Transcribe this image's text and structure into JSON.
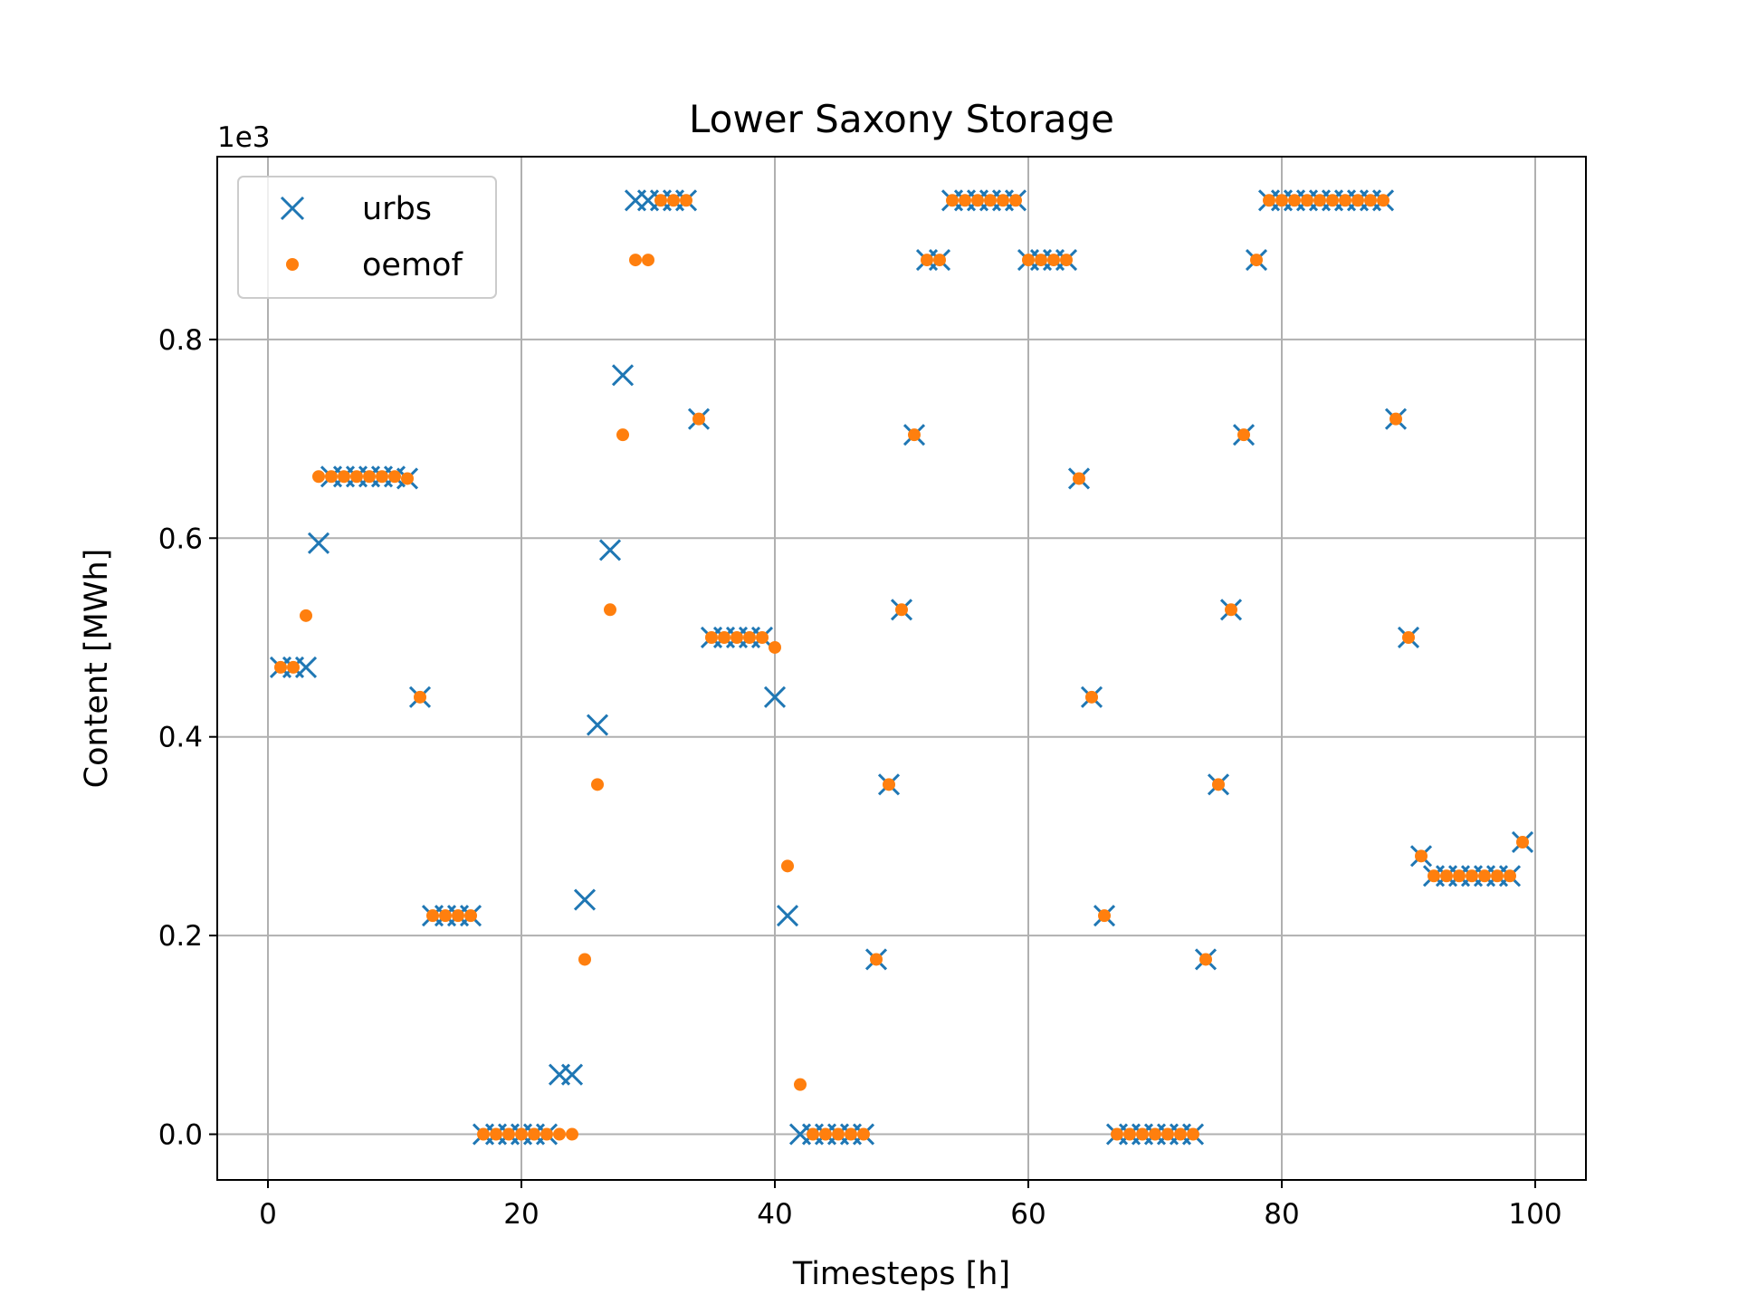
{
  "chart_data": {
    "type": "scatter",
    "title": "Lower Saxony Storage",
    "xlabel": "Timesteps [h]",
    "ylabel": "Content [MWh]",
    "y_offset_label": "1e3",
    "xlim": [
      -4,
      104
    ],
    "ylim": [
      -0.046,
      0.984
    ],
    "xticks": [
      0,
      20,
      40,
      60,
      80,
      100
    ],
    "xtick_labels": [
      "0",
      "20",
      "40",
      "60",
      "80",
      "100"
    ],
    "yticks": [
      0.0,
      0.2,
      0.4,
      0.6,
      0.8
    ],
    "ytick_labels": [
      "0.0",
      "0.2",
      "0.4",
      "0.6",
      "0.8"
    ],
    "grid": true,
    "legend_position": "upper-left",
    "series": [
      {
        "name": "urbs",
        "marker": "x",
        "color": "#1f77b4",
        "x": [
          1,
          2,
          3,
          4,
          5,
          6,
          7,
          8,
          9,
          10,
          11,
          12,
          13,
          14,
          15,
          16,
          17,
          18,
          19,
          20,
          21,
          22,
          23,
          24,
          25,
          26,
          27,
          28,
          29,
          30,
          31,
          32,
          33,
          34,
          35,
          36,
          37,
          38,
          39,
          40,
          41,
          42,
          43,
          44,
          45,
          46,
          47,
          48,
          49,
          50,
          51,
          52,
          53,
          54,
          55,
          56,
          57,
          58,
          59,
          60,
          61,
          62,
          63,
          64,
          65,
          66,
          67,
          68,
          69,
          70,
          71,
          72,
          73,
          74,
          75,
          76,
          77,
          78,
          79,
          80,
          81,
          82,
          83,
          84,
          85,
          86,
          87,
          88,
          89,
          90,
          91,
          92,
          93,
          94,
          95,
          96,
          97,
          98,
          99
        ],
        "y": [
          0.47,
          0.47,
          0.47,
          0.595,
          0.662,
          0.662,
          0.662,
          0.662,
          0.662,
          0.662,
          0.66,
          0.44,
          0.22,
          0.22,
          0.22,
          0.22,
          0.0,
          0.0,
          0.0,
          0.0,
          0.0,
          0.0,
          0.06,
          0.06,
          0.236,
          0.412,
          0.588,
          0.764,
          0.94,
          0.94,
          0.94,
          0.94,
          0.94,
          0.72,
          0.5,
          0.5,
          0.5,
          0.5,
          0.5,
          0.44,
          0.22,
          0.0,
          0.0,
          0.0,
          0.0,
          0.0,
          0.0,
          0.176,
          0.352,
          0.528,
          0.704,
          0.88,
          0.88,
          0.94,
          0.94,
          0.94,
          0.94,
          0.94,
          0.94,
          0.88,
          0.88,
          0.88,
          0.88,
          0.66,
          0.44,
          0.22,
          0.0,
          0.0,
          0.0,
          0.0,
          0.0,
          0.0,
          0.0,
          0.176,
          0.352,
          0.528,
          0.704,
          0.88,
          0.94,
          0.94,
          0.94,
          0.94,
          0.94,
          0.94,
          0.94,
          0.94,
          0.94,
          0.94,
          0.72,
          0.5,
          0.28,
          0.26,
          0.26,
          0.26,
          0.26,
          0.26,
          0.26,
          0.26,
          0.294
        ]
      },
      {
        "name": "oemof",
        "marker": "o",
        "color": "#ff7f0e",
        "x": [
          1,
          2,
          3,
          4,
          5,
          6,
          7,
          8,
          9,
          10,
          11,
          12,
          13,
          14,
          15,
          16,
          17,
          18,
          19,
          20,
          21,
          22,
          23,
          24,
          25,
          26,
          27,
          28,
          29,
          30,
          31,
          32,
          33,
          34,
          35,
          36,
          37,
          38,
          39,
          40,
          41,
          42,
          43,
          44,
          45,
          46,
          47,
          48,
          49,
          50,
          51,
          52,
          53,
          54,
          55,
          56,
          57,
          58,
          59,
          60,
          61,
          62,
          63,
          64,
          65,
          66,
          67,
          68,
          69,
          70,
          71,
          72,
          73,
          74,
          75,
          76,
          77,
          78,
          79,
          80,
          81,
          82,
          83,
          84,
          85,
          86,
          87,
          88,
          89,
          90,
          91,
          92,
          93,
          94,
          95,
          96,
          97,
          98,
          99
        ],
        "y": [
          0.47,
          0.47,
          0.522,
          0.662,
          0.662,
          0.662,
          0.662,
          0.662,
          0.662,
          0.662,
          0.66,
          0.44,
          0.22,
          0.22,
          0.22,
          0.22,
          0.0,
          0.0,
          0.0,
          0.0,
          0.0,
          0.0,
          0.0,
          0.0,
          0.176,
          0.352,
          0.528,
          0.704,
          0.88,
          0.88,
          0.94,
          0.94,
          0.94,
          0.72,
          0.5,
          0.5,
          0.5,
          0.5,
          0.5,
          0.49,
          0.27,
          0.05,
          0.0,
          0.0,
          0.0,
          0.0,
          0.0,
          0.176,
          0.352,
          0.528,
          0.704,
          0.88,
          0.88,
          0.94,
          0.94,
          0.94,
          0.94,
          0.94,
          0.94,
          0.88,
          0.88,
          0.88,
          0.88,
          0.66,
          0.44,
          0.22,
          0.0,
          0.0,
          0.0,
          0.0,
          0.0,
          0.0,
          0.0,
          0.176,
          0.352,
          0.528,
          0.704,
          0.88,
          0.94,
          0.94,
          0.94,
          0.94,
          0.94,
          0.94,
          0.94,
          0.94,
          0.94,
          0.94,
          0.72,
          0.5,
          0.28,
          0.26,
          0.26,
          0.26,
          0.26,
          0.26,
          0.26,
          0.26,
          0.294
        ]
      }
    ]
  }
}
